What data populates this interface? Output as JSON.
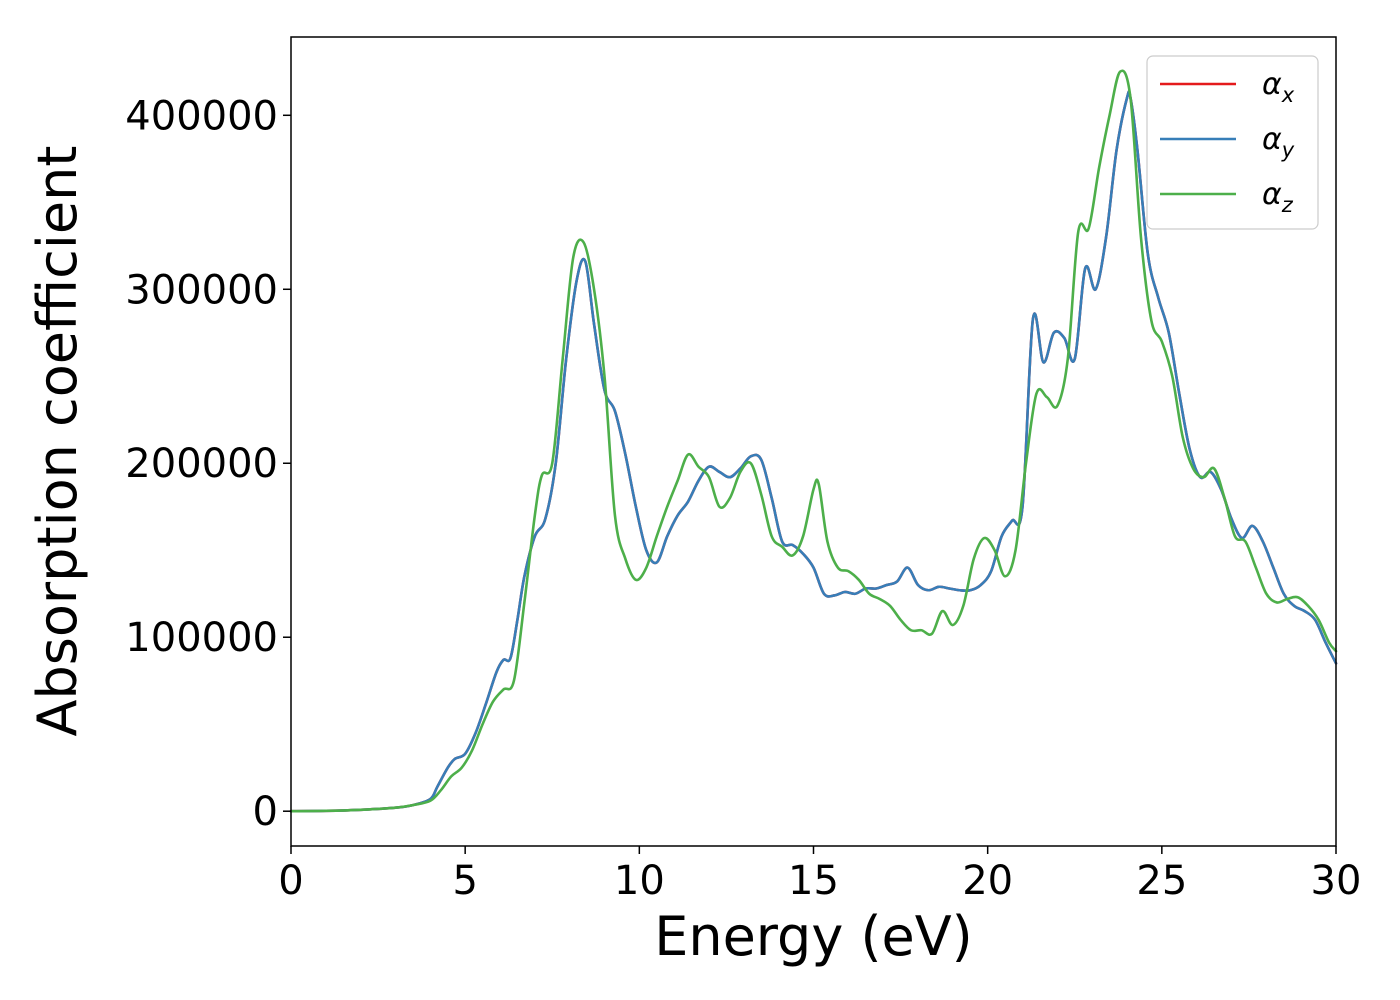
{
  "chart_data": {
    "type": "line",
    "title": "",
    "xlabel": "Energy (eV)",
    "ylabel": "Absorption coefficient",
    "xlim": [
      0,
      30
    ],
    "ylim": [
      -20000,
      445000
    ],
    "x_ticks": [
      0,
      5,
      10,
      15,
      20,
      25,
      30
    ],
    "y_ticks": [
      0,
      100000,
      200000,
      300000,
      400000
    ],
    "grid": false,
    "legend_position": "top-right",
    "series": [
      {
        "name": "α",
        "subscript": "x",
        "color": "#e41a1c",
        "x": [
          0,
          1,
          2,
          3,
          3.5,
          4,
          4.2,
          4.5,
          4.7,
          5,
          5.3,
          5.6,
          5.9,
          6.1,
          6.3,
          6.5,
          6.7,
          7,
          7.3,
          7.6,
          7.9,
          8.2,
          8.45,
          8.7,
          9,
          9.3,
          9.6,
          9.9,
          10.2,
          10.5,
          10.8,
          11.1,
          11.4,
          11.7,
          12,
          12.3,
          12.6,
          12.9,
          13.2,
          13.5,
          13.8,
          14.1,
          14.4,
          14.7,
          15,
          15.3,
          15.6,
          15.9,
          16.2,
          16.5,
          16.8,
          17.1,
          17.4,
          17.7,
          18,
          18.3,
          18.6,
          18.9,
          19.2,
          19.5,
          19.8,
          20.1,
          20.4,
          20.7,
          21,
          21.3,
          21.6,
          21.9,
          22.2,
          22.5,
          22.8,
          23.1,
          23.4,
          23.7,
          24,
          24.1,
          24.3,
          24.6,
          24.9,
          25.2,
          25.5,
          25.8,
          26.1,
          26.4,
          26.7,
          27,
          27.3,
          27.6,
          27.9,
          28.2,
          28.5,
          28.8,
          29.1,
          29.4,
          29.7,
          30
        ],
        "values": [
          0,
          200,
          800,
          2000,
          3500,
          7000,
          14000,
          25000,
          30000,
          33000,
          45000,
          62000,
          80000,
          87000,
          88000,
          110000,
          135000,
          158000,
          168000,
          200000,
          260000,
          305000,
          316000,
          280000,
          242000,
          230000,
          205000,
          175000,
          150000,
          143000,
          158000,
          170000,
          178000,
          190000,
          198000,
          195000,
          192000,
          197000,
          204000,
          202000,
          180000,
          155000,
          153000,
          148000,
          140000,
          125000,
          124000,
          126000,
          125000,
          128000,
          128000,
          130000,
          132000,
          140000,
          130000,
          127000,
          129000,
          128000,
          127000,
          127000,
          130000,
          138000,
          158000,
          167000,
          175000,
          283000,
          258000,
          275000,
          272000,
          260000,
          312000,
          300000,
          330000,
          380000,
          410000,
          410000,
          380000,
          320000,
          295000,
          275000,
          240000,
          208000,
          192000,
          195000,
          185000,
          168000,
          157000,
          164000,
          155000,
          140000,
          125000,
          118000,
          115000,
          110000,
          97000,
          85000
        ]
      },
      {
        "name": "α",
        "subscript": "y",
        "color": "#377eb8",
        "x": [
          0,
          1,
          2,
          3,
          3.5,
          4,
          4.2,
          4.5,
          4.7,
          5,
          5.3,
          5.6,
          5.9,
          6.1,
          6.3,
          6.5,
          6.7,
          7,
          7.3,
          7.6,
          7.9,
          8.2,
          8.45,
          8.7,
          9,
          9.3,
          9.6,
          9.9,
          10.2,
          10.5,
          10.8,
          11.1,
          11.4,
          11.7,
          12,
          12.3,
          12.6,
          12.9,
          13.2,
          13.5,
          13.8,
          14.1,
          14.4,
          14.7,
          15,
          15.3,
          15.6,
          15.9,
          16.2,
          16.5,
          16.8,
          17.1,
          17.4,
          17.7,
          18,
          18.3,
          18.6,
          18.9,
          19.2,
          19.5,
          19.8,
          20.1,
          20.4,
          20.7,
          21,
          21.3,
          21.6,
          21.9,
          22.2,
          22.5,
          22.8,
          23.1,
          23.4,
          23.7,
          24,
          24.1,
          24.3,
          24.6,
          24.9,
          25.2,
          25.5,
          25.8,
          26.1,
          26.4,
          26.7,
          27,
          27.3,
          27.6,
          27.9,
          28.2,
          28.5,
          28.8,
          29.1,
          29.4,
          29.7,
          30
        ],
        "values": [
          0,
          200,
          800,
          2000,
          3500,
          7000,
          14000,
          25000,
          30000,
          33000,
          45000,
          62000,
          80000,
          87000,
          88000,
          110000,
          135000,
          158000,
          168000,
          200000,
          260000,
          305000,
          316000,
          280000,
          242000,
          230000,
          205000,
          175000,
          150000,
          143000,
          158000,
          170000,
          178000,
          190000,
          198000,
          195000,
          192000,
          197000,
          204000,
          202000,
          180000,
          155000,
          153000,
          148000,
          140000,
          125000,
          124000,
          126000,
          125000,
          128000,
          128000,
          130000,
          132000,
          140000,
          130000,
          127000,
          129000,
          128000,
          127000,
          127000,
          130000,
          138000,
          158000,
          167000,
          175000,
          283000,
          258000,
          275000,
          272000,
          260000,
          312000,
          300000,
          330000,
          380000,
          410000,
          410000,
          380000,
          320000,
          295000,
          275000,
          240000,
          208000,
          192000,
          195000,
          185000,
          168000,
          157000,
          164000,
          155000,
          140000,
          125000,
          118000,
          115000,
          110000,
          97000,
          85000
        ]
      },
      {
        "name": "α",
        "subscript": "z",
        "color": "#4daf4a",
        "x": [
          0,
          1,
          2,
          3,
          3.5,
          4,
          4.3,
          4.6,
          4.9,
          5.2,
          5.5,
          5.8,
          6.1,
          6.4,
          6.7,
          7,
          7.2,
          7.5,
          7.8,
          8.1,
          8.4,
          8.7,
          9,
          9.3,
          9.6,
          9.9,
          10.2,
          10.5,
          10.8,
          11.1,
          11.4,
          11.7,
          12,
          12.3,
          12.6,
          12.9,
          13.2,
          13.5,
          13.8,
          14.1,
          14.4,
          14.7,
          15,
          15.15,
          15.4,
          15.7,
          16,
          16.3,
          16.6,
          16.9,
          17.2,
          17.5,
          17.8,
          18.1,
          18.4,
          18.7,
          19,
          19.3,
          19.6,
          19.9,
          20.2,
          20.5,
          20.8,
          21.1,
          21.4,
          21.7,
          22,
          22.3,
          22.6,
          22.9,
          23.2,
          23.5,
          23.8,
          24.1,
          24.4,
          24.7,
          25,
          25.3,
          25.6,
          25.9,
          26.2,
          26.5,
          26.8,
          27.1,
          27.4,
          27.7,
          28,
          28.3,
          28.6,
          28.9,
          29.2,
          29.5,
          29.8,
          30
        ],
        "values": [
          0,
          200,
          800,
          2000,
          3500,
          6000,
          12000,
          20000,
          25000,
          35000,
          50000,
          63000,
          70000,
          75000,
          120000,
          170000,
          193000,
          200000,
          260000,
          318000,
          327000,
          300000,
          250000,
          170000,
          145000,
          133000,
          140000,
          158000,
          175000,
          190000,
          205000,
          198000,
          192000,
          175000,
          180000,
          195000,
          200000,
          182000,
          158000,
          152000,
          147000,
          158000,
          185000,
          188000,
          155000,
          140000,
          138000,
          133000,
          125000,
          122000,
          118000,
          110000,
          104000,
          104000,
          102000,
          115000,
          107000,
          118000,
          145000,
          157000,
          150000,
          135000,
          150000,
          200000,
          240000,
          238000,
          233000,
          260000,
          333000,
          335000,
          370000,
          400000,
          425000,
          410000,
          330000,
          282000,
          270000,
          250000,
          215000,
          197000,
          192000,
          197000,
          180000,
          158000,
          155000,
          140000,
          125000,
          120000,
          122000,
          123000,
          118000,
          110000,
          97000,
          92000
        ]
      }
    ]
  }
}
